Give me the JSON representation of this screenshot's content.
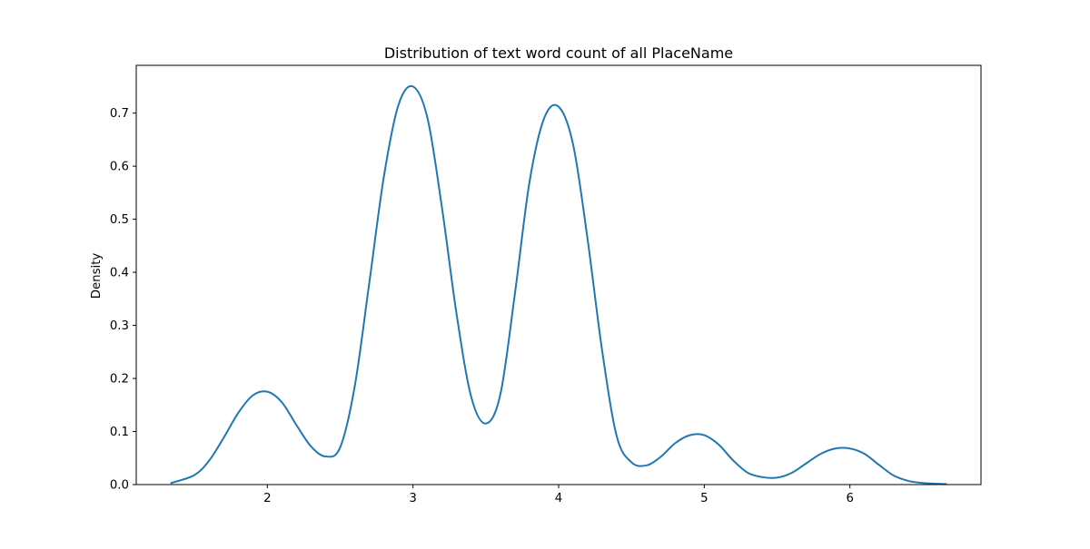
{
  "chart_data": {
    "type": "line",
    "title": "Distribution of text word count of all PlaceName",
    "xlabel": "",
    "ylabel": "Density",
    "xlim": [
      1.1,
      6.9
    ],
    "ylim": [
      0,
      0.79
    ],
    "x_ticks": [
      2,
      3,
      4,
      5,
      6
    ],
    "y_ticks": [
      0.0,
      0.1,
      0.2,
      0.3,
      0.4,
      0.5,
      0.6,
      0.7
    ],
    "grid": false,
    "line_color": "#1f77b4",
    "series": [
      {
        "x": [
          1.34,
          1.5,
          1.6,
          1.7,
          1.8,
          1.9,
          2.0,
          2.1,
          2.2,
          2.3,
          2.4,
          2.5,
          2.6,
          2.7,
          2.8,
          2.9,
          3.0,
          3.1,
          3.2,
          3.3,
          3.4,
          3.5,
          3.6,
          3.7,
          3.8,
          3.9,
          4.0,
          4.1,
          4.2,
          4.3,
          4.4,
          4.5,
          4.6,
          4.7,
          4.8,
          4.9,
          5.0,
          5.1,
          5.2,
          5.3,
          5.4,
          5.5,
          5.6,
          5.7,
          5.8,
          5.9,
          6.0,
          6.1,
          6.2,
          6.3,
          6.4,
          6.5,
          6.66
        ],
        "y": [
          0.003,
          0.018,
          0.045,
          0.088,
          0.135,
          0.168,
          0.175,
          0.155,
          0.112,
          0.072,
          0.053,
          0.07,
          0.185,
          0.38,
          0.58,
          0.715,
          0.75,
          0.69,
          0.52,
          0.32,
          0.165,
          0.115,
          0.17,
          0.36,
          0.57,
          0.69,
          0.712,
          0.64,
          0.46,
          0.25,
          0.09,
          0.042,
          0.036,
          0.052,
          0.078,
          0.093,
          0.093,
          0.075,
          0.045,
          0.022,
          0.014,
          0.013,
          0.022,
          0.04,
          0.058,
          0.068,
          0.068,
          0.058,
          0.037,
          0.017,
          0.007,
          0.003,
          0.001
        ]
      }
    ]
  }
}
